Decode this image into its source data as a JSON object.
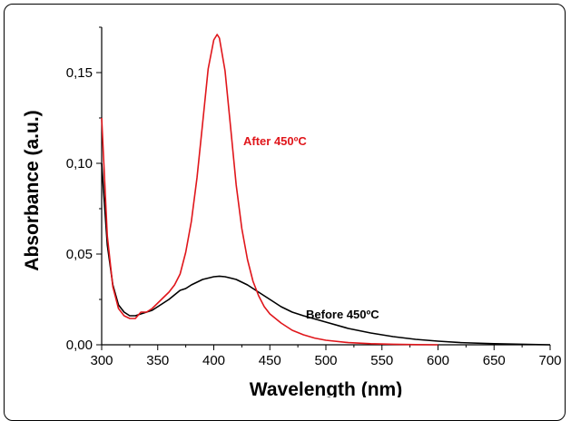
{
  "chart_data": {
    "type": "line",
    "title": "",
    "xlabel": "Wavelength (nm)",
    "ylabel": "Absorbance (a.u.)",
    "xlim": [
      300,
      700
    ],
    "ylim": [
      0,
      0.175
    ],
    "xticks": [
      300,
      350,
      400,
      450,
      500,
      550,
      600,
      650,
      700
    ],
    "xtick_labels": [
      "300",
      "350",
      "400",
      "450",
      "500",
      "550",
      "600",
      "650",
      "700"
    ],
    "yticks": [
      0,
      0.05,
      0.1,
      0.15
    ],
    "ytick_labels": [
      "0,00",
      "0,05",
      "0,10",
      "0,15"
    ],
    "grid": false,
    "legend": "none",
    "series": [
      {
        "name": "After 450ºC",
        "color": "#e0161b",
        "x": [
          300,
          305,
          310,
          315,
          320,
          325,
          330,
          335,
          340,
          345,
          350,
          355,
          360,
          365,
          370,
          375,
          380,
          385,
          390,
          395,
          400,
          403,
          405,
          410,
          415,
          420,
          425,
          430,
          435,
          440,
          445,
          450,
          460,
          470,
          480,
          490,
          500,
          520,
          540,
          560,
          580,
          600
        ],
        "y": [
          0.125,
          0.06,
          0.032,
          0.02,
          0.016,
          0.0145,
          0.0145,
          0.018,
          0.018,
          0.02,
          0.023,
          0.026,
          0.029,
          0.033,
          0.039,
          0.051,
          0.068,
          0.092,
          0.122,
          0.152,
          0.168,
          0.171,
          0.169,
          0.151,
          0.12,
          0.088,
          0.064,
          0.047,
          0.035,
          0.027,
          0.021,
          0.017,
          0.012,
          0.008,
          0.0055,
          0.0037,
          0.0025,
          0.0012,
          0.0006,
          0.0003,
          0.0001,
          0.0
        ]
      },
      {
        "name": "Before 450ºC",
        "color": "#000000",
        "x": [
          300,
          305,
          310,
          315,
          320,
          325,
          330,
          335,
          340,
          345,
          350,
          360,
          370,
          375,
          380,
          390,
          400,
          405,
          410,
          420,
          430,
          440,
          450,
          460,
          470,
          480,
          500,
          520,
          540,
          560,
          580,
          600,
          620,
          650,
          680,
          700
        ],
        "y": [
          0.1,
          0.055,
          0.033,
          0.022,
          0.018,
          0.016,
          0.016,
          0.017,
          0.018,
          0.019,
          0.021,
          0.025,
          0.03,
          0.031,
          0.033,
          0.036,
          0.0375,
          0.0378,
          0.0375,
          0.036,
          0.033,
          0.029,
          0.025,
          0.021,
          0.018,
          0.016,
          0.0125,
          0.009,
          0.0065,
          0.0045,
          0.003,
          0.002,
          0.0012,
          0.0006,
          0.0002,
          0.0
        ]
      }
    ]
  }
}
